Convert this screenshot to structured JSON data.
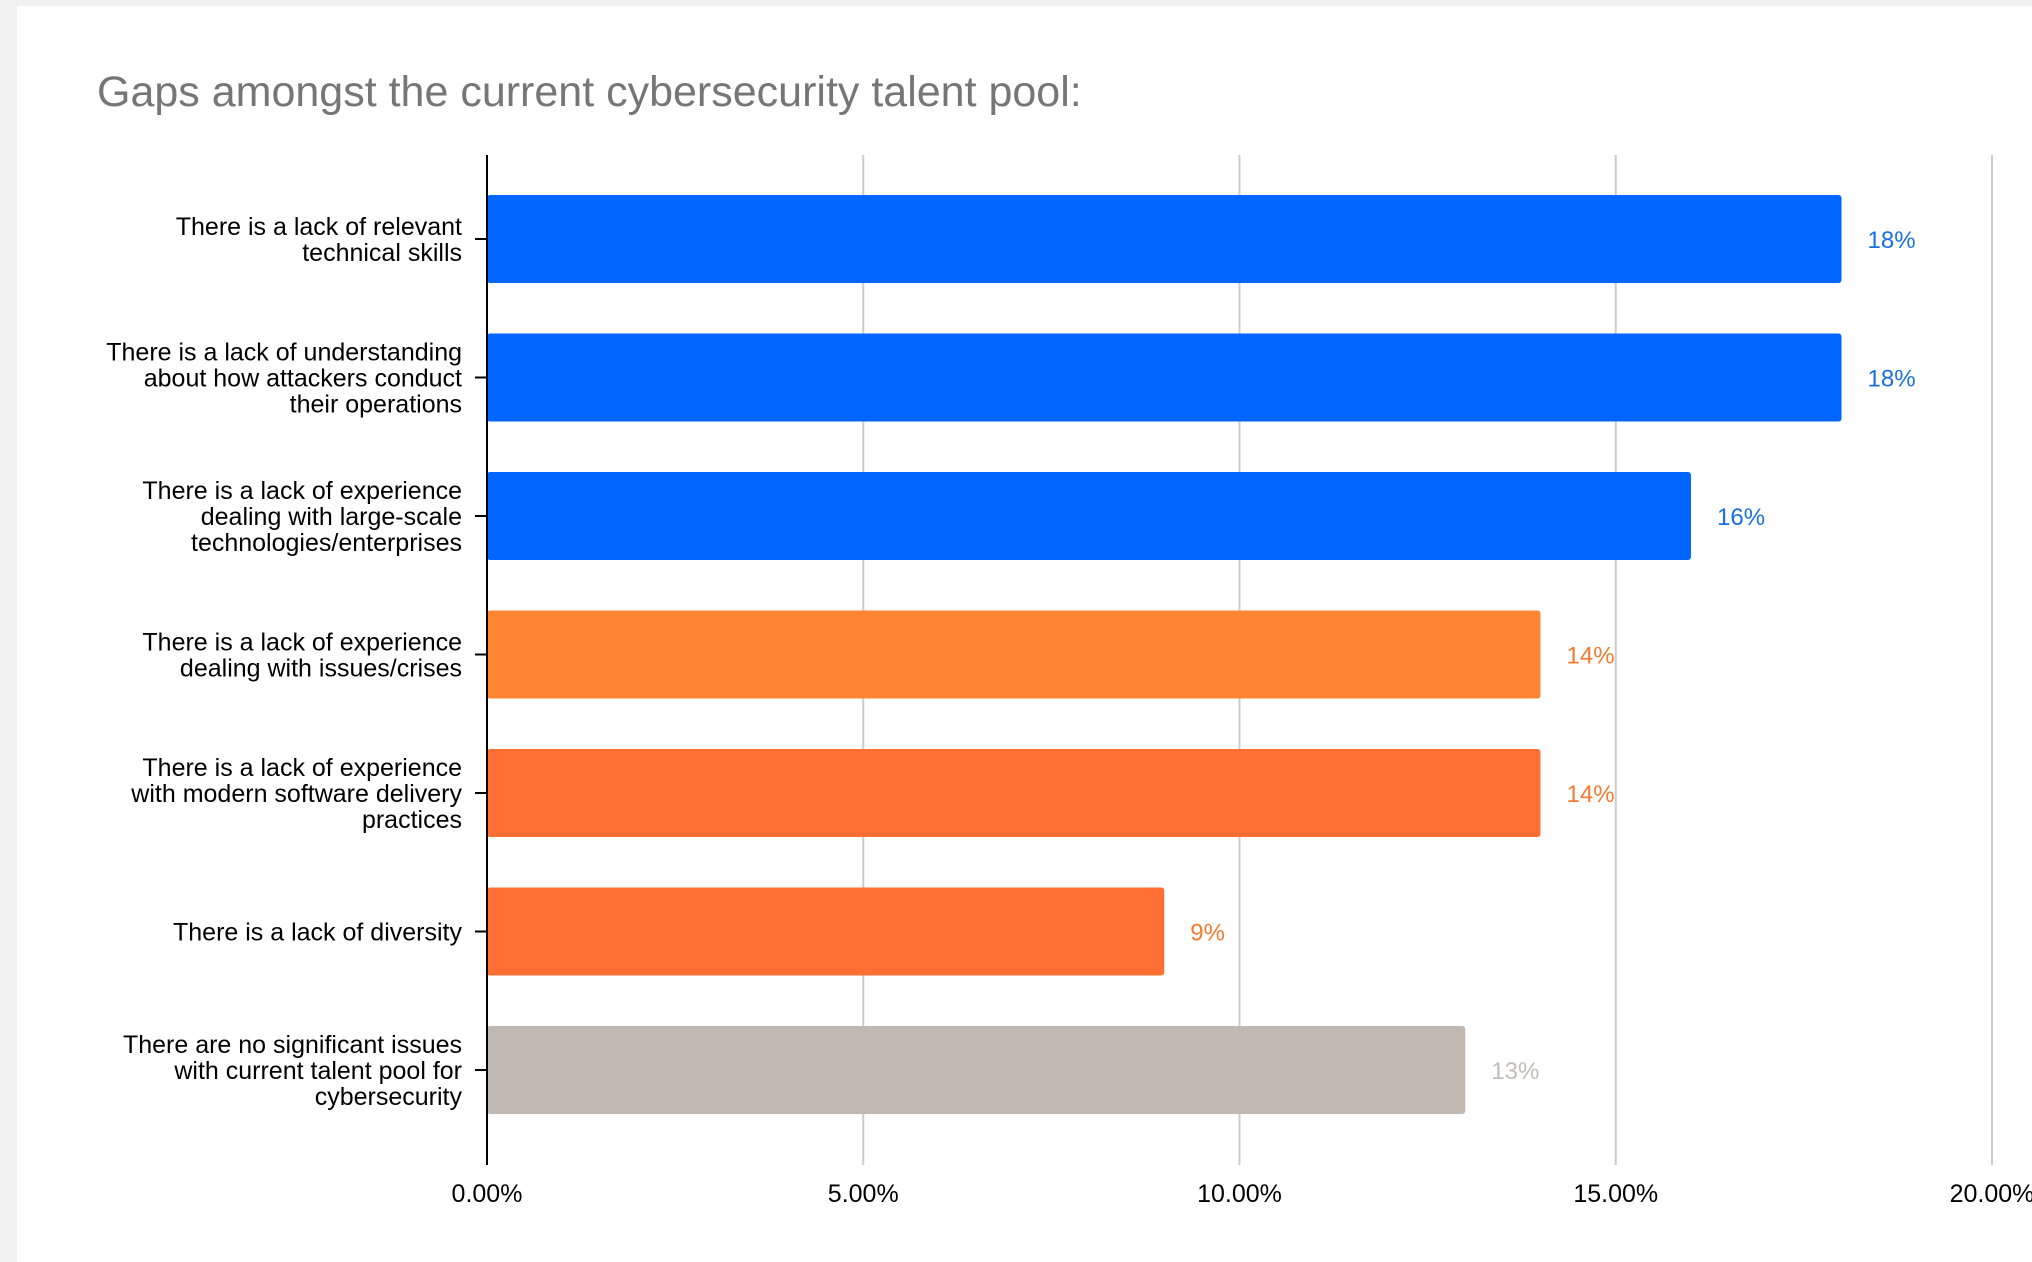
{
  "chart_data": {
    "type": "bar",
    "orientation": "horizontal",
    "title": "Gaps amongst the current cybersecurity talent pool:",
    "xlabel": "",
    "ylabel": "",
    "xlim": [
      0,
      0.2
    ],
    "x_ticks": [
      0,
      0.05,
      0.1,
      0.15,
      0.2
    ],
    "x_tick_labels": [
      "0.00%",
      "5.00%",
      "10.00%",
      "15.00%",
      "20.00%"
    ],
    "grid": "vertical",
    "legend": "none",
    "categories": [
      [
        "There is a lack of relevant",
        "technical skills"
      ],
      [
        "There is a lack of understanding",
        "about how attackers conduct",
        "their operations"
      ],
      [
        "There is a lack of experience",
        "dealing with large-scale",
        "technologies/enterprises"
      ],
      [
        "There is a lack of experience",
        "dealing with issues/crises"
      ],
      [
        "There is a lack of experience",
        "with modern software delivery",
        "practices"
      ],
      [
        "There is a lack of diversity"
      ],
      [
        "There are no significant issues",
        "with current talent pool for",
        "cybersecurity"
      ]
    ],
    "values": [
      0.18,
      0.18,
      0.16,
      0.14,
      0.14,
      0.09,
      0.13
    ],
    "data_labels": [
      "18%",
      "18%",
      "16%",
      "14%",
      "14%",
      "9%",
      "13%"
    ],
    "bar_colors": [
      "#0066ff",
      "#0066ff",
      "#0066ff",
      "#ff8533",
      "#ff6f33",
      "#ff6f33",
      "#c2b8b2"
    ],
    "label_colors": [
      "#1a6fe0",
      "#1a6fe0",
      "#1a6fe0",
      "#f47b30",
      "#f47b30",
      "#f47b30",
      "#c2bcb8"
    ]
  },
  "colors": {
    "grid": "#cccccc",
    "axis": "#000000",
    "tick_text": "#000000",
    "title": "#767676"
  }
}
